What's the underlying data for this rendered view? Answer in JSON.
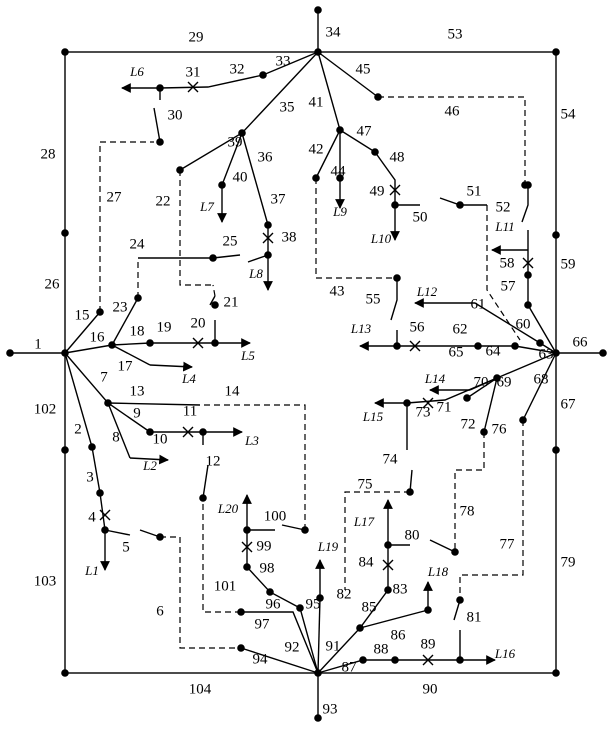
{
  "section_labels": [
    "1",
    "2",
    "3",
    "4",
    "5",
    "6",
    "7",
    "8",
    "9",
    "10",
    "11",
    "12",
    "13",
    "14",
    "15",
    "16",
    "17",
    "18",
    "19",
    "20",
    "21",
    "22",
    "23",
    "24",
    "25",
    "26",
    "27",
    "28",
    "29",
    "30",
    "31",
    "32",
    "33",
    "34",
    "35",
    "36",
    "37",
    "38",
    "39",
    "40",
    "41",
    "42",
    "43",
    "44",
    "45",
    "46",
    "47",
    "48",
    "49",
    "50",
    "51",
    "52",
    "53",
    "54",
    "55",
    "56",
    "57",
    "58",
    "59",
    "60",
    "61",
    "62",
    "63",
    "64",
    "65",
    "66",
    "67",
    "68",
    "69",
    "70",
    "71",
    "72",
    "73",
    "74",
    "75",
    "76",
    "77",
    "78",
    "79",
    "80",
    "81",
    "82",
    "83",
    "84",
    "85",
    "86",
    "87",
    "88",
    "89",
    "90",
    "91",
    "92",
    "93",
    "94",
    "95",
    "96",
    "97",
    "98",
    "99",
    "100",
    "101",
    "102",
    "103",
    "104"
  ],
  "load_labels": [
    "L1",
    "L2",
    "L3",
    "L4",
    "L5",
    "L6",
    "L7",
    "L8",
    "L9",
    "L10",
    "L11",
    "L12",
    "L13",
    "L14",
    "L15",
    "L16",
    "L17",
    "L18",
    "L19",
    "L20"
  ]
}
